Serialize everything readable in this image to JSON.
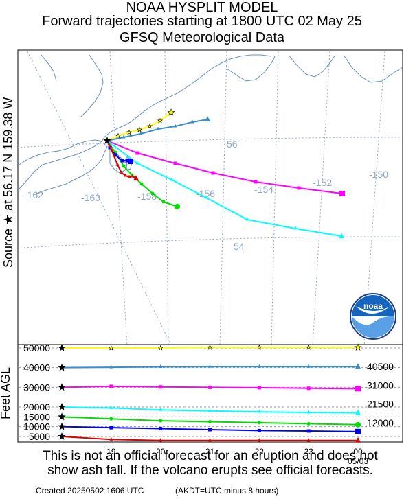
{
  "title": {
    "line1": "NOAA HYSPLIT MODEL",
    "line2": "Forward trajectories starting at 1800 UTC 02 May 25",
    "line3": "GFSQ Meteorological Data"
  },
  "source_label": "Source ★  at   56.17 N  159.38 W",
  "map": {
    "lon_labels": [
      "-162",
      "-160",
      "-158",
      "-156",
      "-154",
      "-152",
      "-150"
    ],
    "lat_labels": [
      "56",
      "54"
    ],
    "grid_color": "#8fa8c8",
    "coast_color": "#6a8fc0",
    "logo_text": "noaa"
  },
  "chart_data": {
    "type": "line",
    "panel": "Trajectory height vs time",
    "ylabel": "Feet AGL",
    "y_ticks": [
      5000,
      10000,
      15000,
      20000,
      30000,
      40000,
      50000
    ],
    "x_tick_labels": [
      "19",
      "20",
      "21",
      "22",
      "23",
      "00"
    ],
    "x_sublabel": "05/03",
    "right_labels": [
      "40500",
      "31000",
      "21500",
      "12000"
    ],
    "x_hours": [
      0,
      3,
      6,
      9,
      12,
      15,
      18
    ],
    "series": [
      {
        "start_height": 50000,
        "color": "#ffff00",
        "marker": "star",
        "heights": [
          50000,
          50000,
          50000,
          50300,
          50300,
          50300,
          50300
        ]
      },
      {
        "start_height": 40000,
        "color": "#3a8fc8",
        "marker": "triangle",
        "heights": [
          40000,
          40200,
          40400,
          40500,
          40500,
          40500,
          40500
        ]
      },
      {
        "start_height": 30000,
        "color": "#ff00ff",
        "marker": "square",
        "heights": [
          30000,
          30500,
          30200,
          30000,
          29800,
          29500,
          29300
        ]
      },
      {
        "start_height": 20000,
        "color": "#00ffff",
        "marker": "triangle",
        "heights": [
          20000,
          19500,
          18500,
          18000,
          17500,
          17200,
          17000
        ]
      },
      {
        "start_height": 15000,
        "color": "#00dd00",
        "marker": "circle",
        "heights": [
          15000,
          14000,
          13000,
          12500,
          12000,
          11500,
          11000
        ]
      },
      {
        "start_height": 10000,
        "color": "#0000ff",
        "marker": "square",
        "heights": [
          10000,
          9500,
          9000,
          8500,
          8000,
          7800,
          7500
        ]
      },
      {
        "start_height": 5000,
        "color": "#dd0000",
        "marker": "triangle",
        "heights": [
          5000,
          3500,
          3000,
          3000,
          3000,
          3000,
          3000
        ]
      }
    ]
  },
  "footer": {
    "line1": "This is not an official forecast for an eruption and does not",
    "line2": "show ash fall. If the volcano erupts see official forecasts.",
    "created": "Created 20250502 1606 UTC",
    "akdt": "(AKDT=UTC minus 8 hours)"
  }
}
